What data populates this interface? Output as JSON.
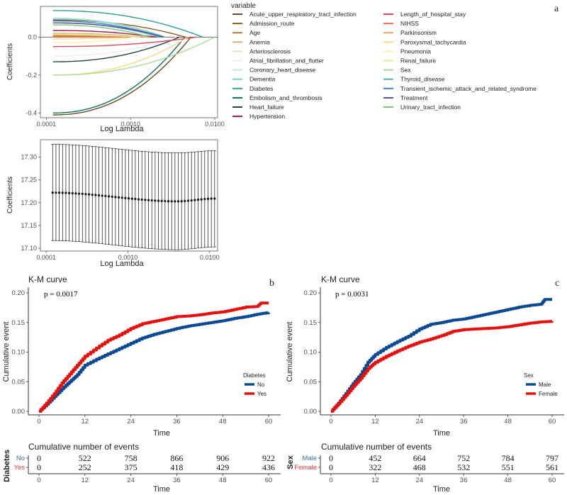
{
  "panels": {
    "a": {
      "letter": "a"
    },
    "b": {
      "letter": "b"
    },
    "c": {
      "letter": "c"
    }
  },
  "chart_data": [
    {
      "id": "lasso_path",
      "type": "line",
      "title": "",
      "xlabel": "Log Lambda",
      "ylabel": "Coefficients",
      "xscale": "log10",
      "xlim": [
        0.0001,
        0.01
      ],
      "ylim": [
        -0.42,
        0.15
      ],
      "x_ticks": [
        "0.0001",
        "0.0010",
        "0.0100"
      ],
      "x_tick_values": [
        0.0001,
        0.001,
        0.01
      ],
      "y_ticks": [
        "-0.4",
        "-0.2",
        "0.0"
      ],
      "y_tick_values": [
        -0.4,
        -0.2,
        0.0
      ],
      "legend_title": "variable",
      "legend_position": "right",
      "series": [
        {
          "name": "Acute_upper_respiratory_tract_infection",
          "color": "#6b4a1e",
          "start": -0.41,
          "end_lambda": 0.0052
        },
        {
          "name": "Admission_route",
          "color": "#8c5a1c",
          "start": 0.09,
          "end_lambda": 0.0045
        },
        {
          "name": "Age",
          "color": "#b8772a",
          "start": 0.005,
          "end_lambda": 0.0018
        },
        {
          "name": "Anemia",
          "color": "#d9b574",
          "start": 0.02,
          "end_lambda": 0.0016
        },
        {
          "name": "Arteriosclerosis",
          "color": "#efdcb2",
          "start": -0.01,
          "end_lambda": 0.0012
        },
        {
          "name": "Atrial_fibrillation_and_flutter",
          "color": "#eeeeee",
          "start": -0.1,
          "end_lambda": 0.0035
        },
        {
          "name": "Coronary_heart_disease",
          "color": "#bfe7dd",
          "start": 0.1,
          "end_lambda": 0.0025
        },
        {
          "name": "Dementia",
          "color": "#7fcfc0",
          "start": 0.095,
          "end_lambda": 0.0026
        },
        {
          "name": "Diabetes",
          "color": "#2f9e8f",
          "start": 0.14,
          "end_lambda": 0.0072
        },
        {
          "name": "Embolism_and_thrombosis",
          "color": "#0f6e60",
          "start": -0.4,
          "end_lambda": 0.0044
        },
        {
          "name": "Heart_failure",
          "color": "#1e4a3a",
          "start": -0.13,
          "end_lambda": 0.0038
        },
        {
          "name": "Hypertension",
          "color": "#a5174f",
          "start": 0.035,
          "end_lambda": 0.002
        },
        {
          "name": "Length_of_hospital_stay",
          "color": "#e04a55",
          "start": -0.05,
          "end_lambda": 0.006
        },
        {
          "name": "NIHSS",
          "color": "#f26e4f",
          "start": 0.0,
          "end_lambda": 0.001
        },
        {
          "name": "Parkinsonism",
          "color": "#f7a35c",
          "start": 0.01,
          "end_lambda": 0.0009
        },
        {
          "name": "Paroxysmal_tachycardia",
          "color": "#fbd882",
          "start": -0.2,
          "end_lambda": 0.0048
        },
        {
          "name": "Pneumonia",
          "color": "#fbf4a8",
          "start": -0.03,
          "end_lambda": 0.0011
        },
        {
          "name": "Renal_failure",
          "color": "#dcef9a",
          "start": 0.015,
          "end_lambda": 0.0013
        },
        {
          "name": "Sex",
          "color": "#a9dc98",
          "start": -0.2,
          "end_lambda": 0.01
        },
        {
          "name": "Thyroid_disease",
          "color": "#52b89c",
          "start": 0.075,
          "end_lambda": 0.0022
        },
        {
          "name": "Transient_ischemic_attack_and_related_syndrome",
          "color": "#3a85c4",
          "start": 0.085,
          "end_lambda": 0.0024
        },
        {
          "name": "Treatment",
          "color": "#5a4aa8",
          "start": 0.075,
          "end_lambda": 0.0025
        },
        {
          "name": "Urinary_tract_infection",
          "color": "#7cc576",
          "start": 0.065,
          "end_lambda": 0.0017
        }
      ]
    },
    {
      "id": "cv_curve",
      "type": "scatter",
      "xlabel": "Log Lambda",
      "ylabel": "Coefficients",
      "xscale": "log10",
      "xlim": [
        0.0001,
        0.0125
      ],
      "ylim": [
        17.095,
        17.335
      ],
      "x_ticks": [
        "0.0001",
        "0.0010",
        "0.0100"
      ],
      "x_tick_values": [
        0.0001,
        0.001,
        0.01
      ],
      "y_ticks": [
        "17.10",
        "17.15",
        "17.20",
        "17.25",
        "17.30"
      ],
      "y_tick_values": [
        17.1,
        17.15,
        17.2,
        17.25,
        17.3
      ],
      "points": {
        "n": 50,
        "lambda_range": [
          0.00012,
          0.0115
        ],
        "mean_start": 17.222,
        "mean_min": 17.203,
        "mean_min_at": 0.004,
        "mean_end": 17.209,
        "upper_start": 17.328,
        "upper_min": 17.309,
        "upper_end": 17.314,
        "lower_start": 17.117,
        "lower_min": 17.097,
        "lower_end": 17.103
      }
    },
    {
      "id": "km_diabetes",
      "type": "line",
      "title": "K-M curve",
      "annotation": "p = 0.0017",
      "xlabel": "Time",
      "ylabel": "Cumulative event",
      "xlim": [
        0,
        60
      ],
      "ylim": [
        0,
        0.2
      ],
      "x_ticks": [
        "0",
        "12",
        "24",
        "36",
        "48",
        "60"
      ],
      "y_ticks": [
        "0.00",
        "0.05",
        "0.10",
        "0.15",
        "0.20"
      ],
      "legend_title": "Diabetes",
      "legend_position": "bottom-right",
      "series": [
        {
          "name": "No",
          "color": "#0b4a93",
          "x": [
            0,
            2,
            4,
            6,
            8,
            10,
            12,
            15,
            18,
            21,
            24,
            27,
            30,
            33,
            36,
            39,
            42,
            45,
            48,
            51,
            54,
            57,
            60
          ],
          "y": [
            0,
            0.012,
            0.025,
            0.038,
            0.05,
            0.062,
            0.078,
            0.088,
            0.097,
            0.106,
            0.115,
            0.124,
            0.13,
            0.135,
            0.14,
            0.144,
            0.147,
            0.15,
            0.153,
            0.157,
            0.16,
            0.164,
            0.167
          ]
        },
        {
          "name": "Yes",
          "color": "#e8100e",
          "x": [
            0,
            2,
            4,
            6,
            8,
            10,
            12,
            15,
            18,
            21,
            24,
            27,
            30,
            33,
            36,
            39,
            42,
            45,
            48,
            51,
            54,
            57,
            58,
            60
          ],
          "y": [
            0,
            0.014,
            0.03,
            0.048,
            0.063,
            0.078,
            0.093,
            0.107,
            0.12,
            0.129,
            0.14,
            0.148,
            0.152,
            0.156,
            0.16,
            0.161,
            0.163,
            0.166,
            0.168,
            0.172,
            0.176,
            0.177,
            0.183,
            0.183
          ]
        }
      ],
      "risk_table": {
        "title": "Cumulative number of events",
        "strata_label": "Diabetes",
        "rows": [
          {
            "label": "No",
            "color": "#3a6fb0",
            "values": [
              "0",
              "522",
              "758",
              "866",
              "906",
              "922"
            ]
          },
          {
            "label": "Yes",
            "color": "#e8333a",
            "values": [
              "0",
              "252",
              "375",
              "418",
              "429",
              "436"
            ]
          }
        ],
        "x_ticks": [
          "0",
          "12",
          "24",
          "36",
          "48",
          "60"
        ],
        "xlabel": "Time"
      }
    },
    {
      "id": "km_sex",
      "type": "line",
      "title": "K-M curve",
      "annotation": "p = 0.0031",
      "xlabel": "Time",
      "ylabel": "Cumulative event",
      "xlim": [
        0,
        60
      ],
      "ylim": [
        0,
        0.2
      ],
      "x_ticks": [
        "0",
        "12",
        "24",
        "36",
        "48",
        "60"
      ],
      "y_ticks": [
        "0.00",
        "0.05",
        "0.10",
        "0.15",
        "0.20"
      ],
      "legend_title": "Sex",
      "legend_position": "bottom-right",
      "series": [
        {
          "name": "Male",
          "color": "#0b4a93",
          "x": [
            0,
            2,
            4,
            6,
            8,
            10,
            12,
            15,
            18,
            21,
            24,
            27,
            30,
            33,
            36,
            39,
            42,
            45,
            48,
            51,
            54,
            57,
            58,
            60
          ],
          "y": [
            0,
            0.014,
            0.03,
            0.047,
            0.062,
            0.083,
            0.096,
            0.108,
            0.118,
            0.127,
            0.139,
            0.147,
            0.15,
            0.154,
            0.156,
            0.16,
            0.164,
            0.168,
            0.172,
            0.176,
            0.179,
            0.181,
            0.189,
            0.189
          ]
        },
        {
          "name": "Female",
          "color": "#e8100e",
          "x": [
            0,
            2,
            4,
            6,
            8,
            10,
            12,
            15,
            18,
            21,
            24,
            27,
            30,
            33,
            36,
            39,
            42,
            45,
            48,
            51,
            54,
            57,
            60
          ],
          "y": [
            0,
            0.013,
            0.027,
            0.042,
            0.056,
            0.072,
            0.083,
            0.093,
            0.102,
            0.11,
            0.117,
            0.122,
            0.128,
            0.135,
            0.138,
            0.139,
            0.14,
            0.141,
            0.143,
            0.146,
            0.149,
            0.151,
            0.152
          ]
        }
      ],
      "risk_table": {
        "title": "Cumulative number of events",
        "strata_label": "Sex",
        "rows": [
          {
            "label": "Male",
            "color": "#3a6fb0",
            "values": [
              "0",
              "452",
              "664",
              "752",
              "784",
              "797"
            ]
          },
          {
            "label": "Female",
            "color": "#e8333a",
            "values": [
              "0",
              "322",
              "468",
              "532",
              "551",
              "561"
            ]
          }
        ],
        "x_ticks": [
          "0",
          "12",
          "24",
          "36",
          "48",
          "60"
        ],
        "xlabel": "Time"
      }
    }
  ]
}
